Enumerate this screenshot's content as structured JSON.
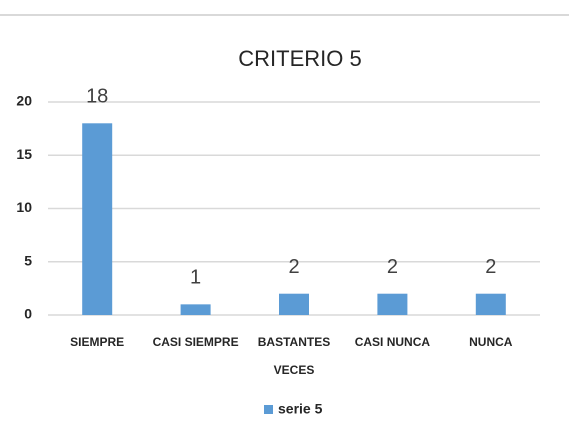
{
  "chart_data": {
    "type": "bar",
    "title": "CRITERIO 5",
    "categories": [
      "SIEMPRE",
      "CASI SIEMPRE",
      "BASTANTES VECES",
      "CASI NUNCA",
      "NUNCA"
    ],
    "series": [
      {
        "name": "serie 5",
        "color": "#5b9bd5",
        "values": [
          18,
          1,
          2,
          2,
          2
        ]
      }
    ],
    "ylim": [
      0,
      20
    ],
    "yticks": [
      0,
      5,
      10,
      15,
      20
    ],
    "grid": true,
    "legend": "bottom"
  }
}
